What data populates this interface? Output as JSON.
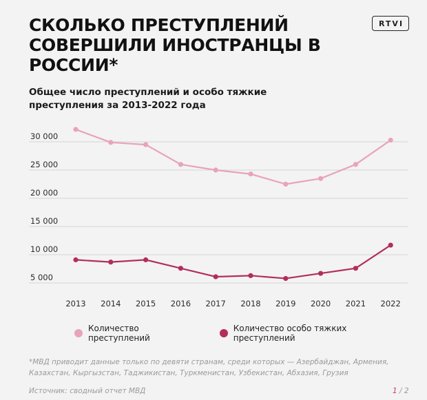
{
  "header": {
    "title": "СКОЛЬКО ПРЕСТУПЛЕНИЙ СОВЕРШИЛИ ИНОСТРАНЦЫ В РОССИИ*",
    "logo_text": "RTVI",
    "subtitle": "Общее число преступлений и особо тяжкие преступления за 2013-2022 года"
  },
  "chart_data": {
    "type": "line",
    "x": [
      "2013",
      "2014",
      "2015",
      "2016",
      "2017",
      "2018",
      "2019",
      "2020",
      "2021",
      "2022"
    ],
    "series": [
      {
        "name": "Количество преступлений",
        "color": "#e8a3bb",
        "values": [
          32200,
          29900,
          29500,
          26000,
          25000,
          24300,
          22500,
          23500,
          26000,
          30300
        ]
      },
      {
        "name": "Количество особо тяжких преступлений",
        "color": "#b32d5e",
        "values": [
          9100,
          8700,
          9100,
          7600,
          6100,
          6300,
          5800,
          6700,
          7600,
          11700
        ]
      }
    ],
    "yticks": [
      30000,
      25000,
      20000,
      15000,
      10000,
      5000
    ],
    "ytick_labels": [
      "30 000",
      "25 000",
      "20 000",
      "15 000",
      "10 000",
      "5 000"
    ],
    "ylim": [
      5000,
      30000
    ],
    "grid": true,
    "legend_position": "bottom"
  },
  "footer": {
    "footnote": "*МВД приводит данные только по девяти странам, среди которых — Азербайджан, Армения, Казахстан, Кыргызстан, Таджикистан, Туркменистан, Узбекистан, Абхазия, Грузия",
    "source": "Источник: сводный отчет МВД",
    "page_current": "1",
    "page_sep": " / ",
    "page_total": "2"
  }
}
